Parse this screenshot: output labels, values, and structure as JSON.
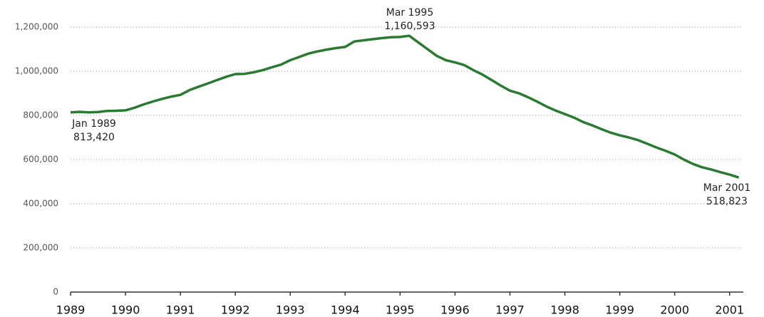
{
  "chart_data": {
    "type": "line",
    "x": [
      "1989-01",
      "1989-03",
      "1989-05",
      "1989-07",
      "1989-09",
      "1989-11",
      "1990-01",
      "1990-03",
      "1990-05",
      "1990-07",
      "1990-09",
      "1990-11",
      "1991-01",
      "1991-03",
      "1991-05",
      "1991-07",
      "1991-09",
      "1991-11",
      "1992-01",
      "1992-03",
      "1992-05",
      "1992-07",
      "1992-09",
      "1992-11",
      "1993-01",
      "1993-03",
      "1993-05",
      "1993-07",
      "1993-09",
      "1993-11",
      "1994-01",
      "1994-03",
      "1994-05",
      "1994-07",
      "1994-09",
      "1994-11",
      "1995-01",
      "1995-03",
      "1995-05",
      "1995-07",
      "1995-09",
      "1995-11",
      "1996-01",
      "1996-03",
      "1996-05",
      "1996-07",
      "1996-09",
      "1996-11",
      "1997-01",
      "1997-03",
      "1997-05",
      "1997-07",
      "1997-09",
      "1997-11",
      "1998-01",
      "1998-03",
      "1998-05",
      "1998-07",
      "1998-09",
      "1998-11",
      "1999-01",
      "1999-03",
      "1999-05",
      "1999-07",
      "1999-09",
      "1999-11",
      "2000-01",
      "2000-03",
      "2000-05",
      "2000-07",
      "2000-09",
      "2000-11",
      "2001-01",
      "2001-03"
    ],
    "series": [
      {
        "color": "#2b7a32",
        "values": [
          813420,
          816000,
          814000,
          815000,
          820000,
          821000,
          823000,
          835000,
          850000,
          863000,
          875000,
          885000,
          893000,
          915000,
          930000,
          945000,
          960000,
          975000,
          987000,
          988000,
          995000,
          1005000,
          1018000,
          1030000,
          1050000,
          1065000,
          1080000,
          1090000,
          1098000,
          1105000,
          1110000,
          1135000,
          1140000,
          1145000,
          1150000,
          1154000,
          1155000,
          1160593,
          1130000,
          1100000,
          1070000,
          1050000,
          1040000,
          1028000,
          1005000,
          985000,
          960000,
          935000,
          912000,
          900000,
          882000,
          862000,
          840000,
          822000,
          806000,
          790000,
          770000,
          755000,
          738000,
          722000,
          710000,
          700000,
          688000,
          672000,
          655000,
          640000,
          623000,
          600000,
          580000,
          565000,
          555000,
          543000,
          532000,
          518823
        ]
      }
    ],
    "annotations": [
      {
        "label": "Jan 1989",
        "value_label": "813,420"
      },
      {
        "label": "Mar 1995",
        "value_label": "1,160,593"
      },
      {
        "label": "Mar 2001",
        "value_label": "518,823"
      }
    ],
    "xlim": [
      1989,
      2001.25
    ],
    "xticks": [
      1989,
      1990,
      1991,
      1992,
      1993,
      1994,
      1995,
      1996,
      1997,
      1998,
      1999,
      2000,
      2001
    ],
    "ylim": [
      0,
      1200000
    ],
    "yticks": [
      0,
      {
        "value": 200000,
        "label": "200,000"
      },
      {
        "value": 400000,
        "label": "400,000"
      },
      {
        "value": 600000,
        "label": "600,000"
      },
      {
        "value": 800000,
        "label": "800,000"
      },
      {
        "value": 1000000,
        "label": "1,000,000"
      },
      {
        "value": 1200000,
        "label": "1,200,000"
      }
    ],
    "grid": true
  }
}
